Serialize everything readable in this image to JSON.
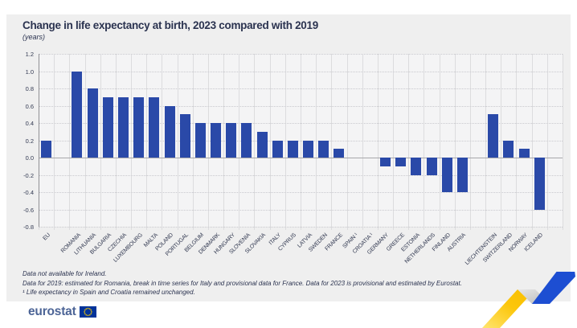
{
  "title": "Change in life expectancy at birth, 2023 compared with 2019",
  "subtitle": "(years)",
  "footnotes": [
    "Data not available for Ireland.",
    "Data for 2019: estimated for Romania, break in time series for Italy and provisional data for France. Data for 2023 is provisional and estimated by Eurostat.",
    "¹ Life expectancy in Spain and Croatia remained unchanged."
  ],
  "logo": {
    "text": "eurostat",
    "flag_icon": "eu-flag-icon"
  },
  "colors": {
    "bar": "#2a49a8",
    "panel_background": "#efefef",
    "plot_background": "#f4f4f5",
    "title_text": "#2b3350",
    "axis_text": "#333a52",
    "ribbon_yellow": "#fcc60a",
    "ribbon_gray": "#c8c8c8",
    "ribbon_blue": "#1d4ed2",
    "flag_blue": "#003399",
    "flag_stars": "#ffcc00",
    "logo_text": "#4c6496"
  },
  "chart_data": {
    "type": "bar",
    "title": "Change in life expectancy at birth, 2023 compared with 2019",
    "ylabel": "(years)",
    "xlabel": "",
    "ylim": [
      -0.8,
      1.2
    ],
    "ytick_step": 0.2,
    "yticks": [
      "1.2",
      "1.0",
      "0.8",
      "0.6",
      "0.4",
      "0.2",
      "0.0",
      "-0.2",
      "-0.4",
      "-0.6",
      "-0.8"
    ],
    "grid": true,
    "legend": false,
    "groups": [
      {
        "name": "eu-aggregate",
        "items": [
          {
            "label": "EU",
            "value": 0.2
          }
        ]
      },
      {
        "name": "member-states",
        "items": [
          {
            "label": "ROMANIA",
            "value": 1.0
          },
          {
            "label": "LITHUANIA",
            "value": 0.8
          },
          {
            "label": "BULGARIA",
            "value": 0.7
          },
          {
            "label": "CZECHIA",
            "value": 0.7
          },
          {
            "label": "LUXEMBOURG",
            "value": 0.7
          },
          {
            "label": "MALTA",
            "value": 0.7
          },
          {
            "label": "POLAND",
            "value": 0.6
          },
          {
            "label": "PORTUGAL",
            "value": 0.5
          },
          {
            "label": "BELGIUM",
            "value": 0.4
          },
          {
            "label": "DENMARK",
            "value": 0.4
          },
          {
            "label": "HUNGARY",
            "value": 0.4
          },
          {
            "label": "SLOVENIA",
            "value": 0.4
          },
          {
            "label": "SLOVAKIA",
            "value": 0.3
          },
          {
            "label": "ITALY",
            "value": 0.2
          },
          {
            "label": "CYPRUS",
            "value": 0.2
          },
          {
            "label": "LATVIA",
            "value": 0.2
          },
          {
            "label": "SWEDEN",
            "value": 0.2
          },
          {
            "label": "FRANCE",
            "value": 0.1
          },
          {
            "label": "SPAIN ¹",
            "value": 0.0
          },
          {
            "label": "CROATIA ¹",
            "value": 0.0
          },
          {
            "label": "GERMANY",
            "value": -0.1
          },
          {
            "label": "GREECE",
            "value": -0.1
          },
          {
            "label": "ESTONIA",
            "value": -0.2
          },
          {
            "label": "NETHERLANDS",
            "value": -0.2
          },
          {
            "label": "FINLAND",
            "value": -0.4
          },
          {
            "label": "AUSTRIA",
            "value": -0.4
          }
        ]
      },
      {
        "name": "efta",
        "items": [
          {
            "label": "LIECHTENSTEIN",
            "value": 0.5
          },
          {
            "label": "SWITZERLAND",
            "value": 0.2
          },
          {
            "label": "NORWAY",
            "value": 0.1
          },
          {
            "label": "ICELAND",
            "value": -0.6
          }
        ]
      }
    ]
  }
}
